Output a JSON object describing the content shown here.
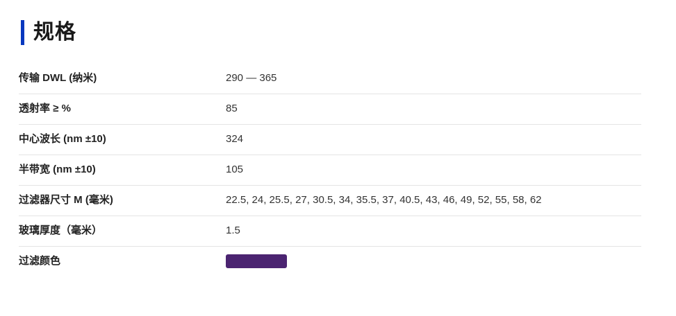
{
  "page": {
    "title": "规格",
    "accent_color": "#0838bf"
  },
  "table": {
    "rows": [
      {
        "label": "传输 DWL (纳米)",
        "value": "290 — 365"
      },
      {
        "label": "透射率 ≥ %",
        "value": "85"
      },
      {
        "label": "中心波长 (nm ±10)",
        "value": "324"
      },
      {
        "label": "半带宽 (nm ±10)",
        "value": "105"
      },
      {
        "label": "过滤器尺寸 M (毫米)",
        "value": "22.5, 24, 25.5, 27, 30.5, 34, 35.5, 37, 40.5, 43, 46, 49, 52, 55, 58, 62"
      },
      {
        "label": "玻璃厚度（毫米）",
        "value": "1.5"
      },
      {
        "label": "过滤颜色",
        "swatch_color": "#4b2471"
      }
    ]
  }
}
